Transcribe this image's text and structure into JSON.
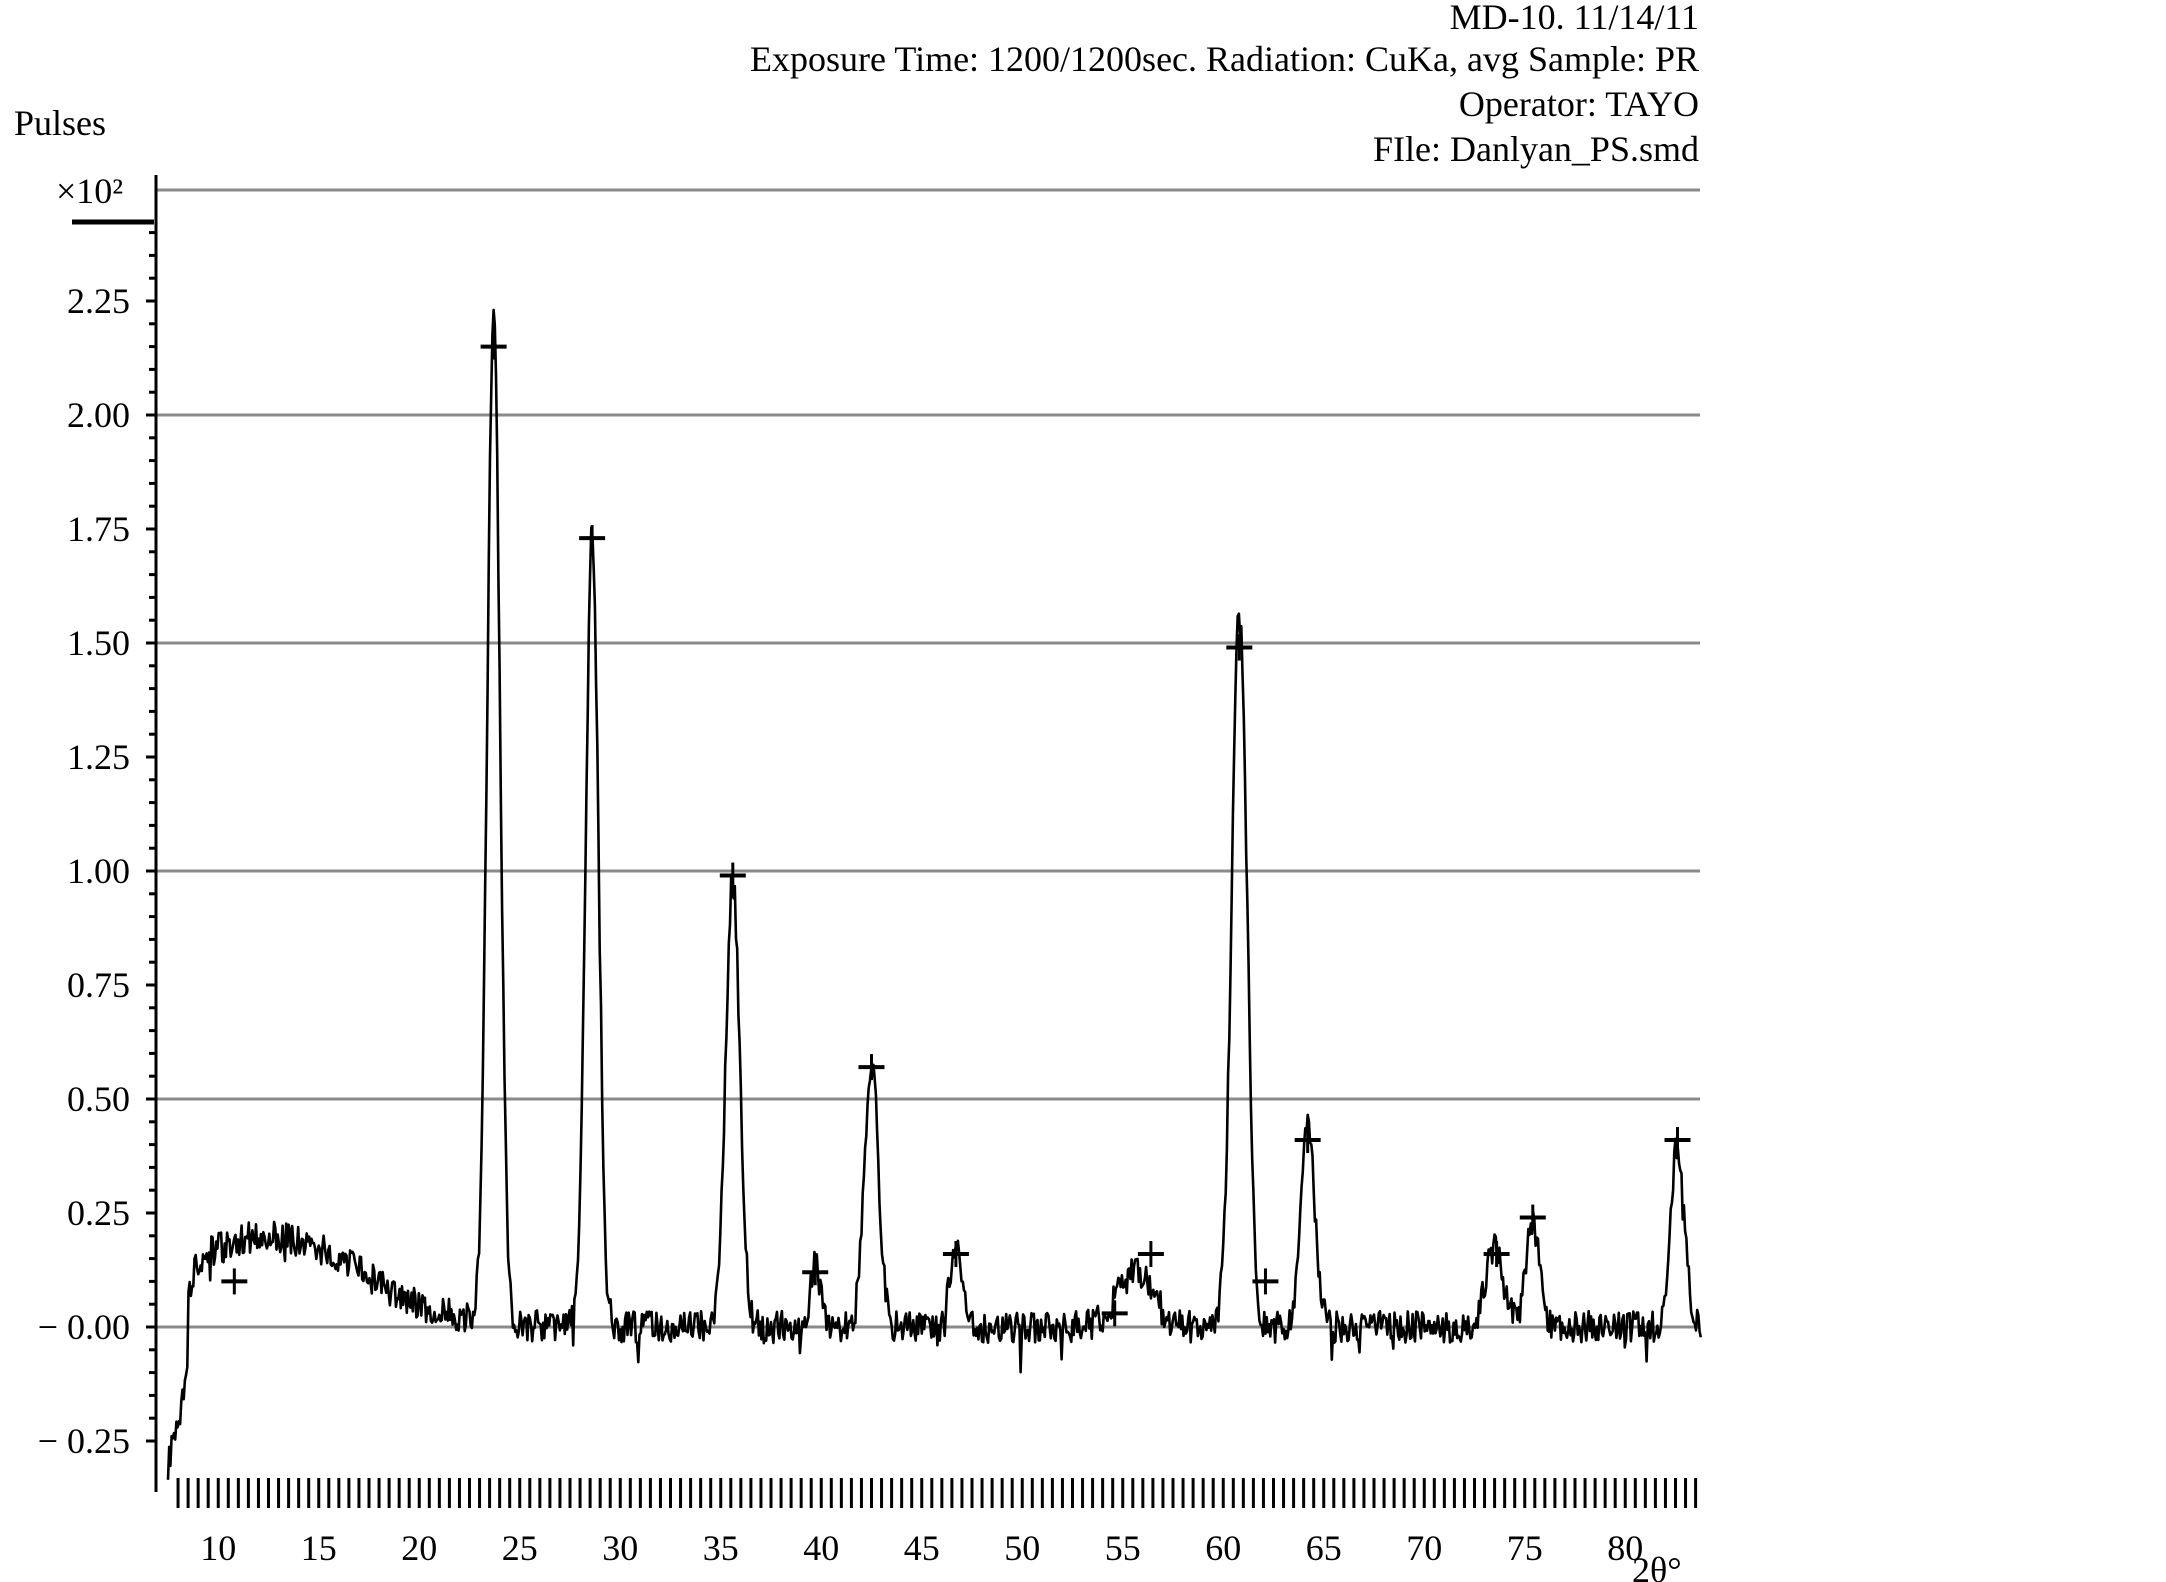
{
  "header": {
    "line1": "MD-10. 11/14/11",
    "line2": "Exposure Time: 1200/1200sec. Radiation: CuKa, avg Sample: PR",
    "line3": "Operator: TAYO",
    "line4": "FIle: Danlyan_PS.smd"
  },
  "chart_data": {
    "type": "line",
    "ylabel": "Pulses",
    "yscale_label": "×10²",
    "xlabel": "2θ°",
    "xlim": [
      7.5,
      83.8
    ],
    "ylim": [
      -0.28,
      2.5
    ],
    "yticks": [
      -0.25,
      0.0,
      0.25,
      0.5,
      0.75,
      1.0,
      1.25,
      1.5,
      1.75,
      2.0,
      2.25
    ],
    "ytick_labels": [
      "− 0.25",
      "− 0.00",
      "0.25",
      "0.50",
      "0.75",
      "1.00",
      "1.25",
      "1.50",
      "1.75",
      "2.00",
      "2.25"
    ],
    "xticks": [
      10,
      15,
      20,
      25,
      30,
      35,
      40,
      45,
      50,
      55,
      60,
      65,
      70,
      75,
      80
    ],
    "grid": "horizontal",
    "gridlines": [
      0.0,
      0.5,
      1.0,
      1.5,
      2.0,
      2.5
    ],
    "series": [
      {
        "peaks": [
          {
            "x": 23.7,
            "y": 2.2,
            "w": 0.32
          },
          {
            "x": 28.6,
            "y": 1.74,
            "w": 0.32
          },
          {
            "x": 35.6,
            "y": 0.98,
            "w": 0.35
          },
          {
            "x": 39.7,
            "y": 0.14,
            "w": 0.25
          },
          {
            "x": 42.5,
            "y": 0.58,
            "w": 0.35
          },
          {
            "x": 46.7,
            "y": 0.17,
            "w": 0.3
          },
          {
            "x": 55.6,
            "y": 0.12,
            "w": 0.9
          },
          {
            "x": 60.8,
            "y": 1.58,
            "w": 0.38
          },
          {
            "x": 64.2,
            "y": 0.45,
            "w": 0.35
          },
          {
            "x": 73.5,
            "y": 0.17,
            "w": 0.45
          },
          {
            "x": 75.4,
            "y": 0.22,
            "w": 0.35
          },
          {
            "x": 82.6,
            "y": 0.4,
            "w": 0.35
          }
        ],
        "background_hump": {
          "x": 12.5,
          "y": 0.2,
          "w": 4.5
        },
        "noise_amplitude": 0.035
      }
    ],
    "markers": [
      {
        "x": 10.8,
        "y": 0.1
      },
      {
        "x": 23.7,
        "y": 2.15
      },
      {
        "x": 28.6,
        "y": 1.73
      },
      {
        "x": 35.6,
        "y": 0.99
      },
      {
        "x": 39.7,
        "y": 0.12
      },
      {
        "x": 42.5,
        "y": 0.57
      },
      {
        "x": 46.7,
        "y": 0.16
      },
      {
        "x": 54.6,
        "y": 0.03
      },
      {
        "x": 56.4,
        "y": 0.16
      },
      {
        "x": 60.8,
        "y": 1.49
      },
      {
        "x": 62.1,
        "y": 0.1
      },
      {
        "x": 64.2,
        "y": 0.41
      },
      {
        "x": 73.6,
        "y": 0.16
      },
      {
        "x": 75.4,
        "y": 0.24
      },
      {
        "x": 82.6,
        "y": 0.41
      }
    ]
  }
}
